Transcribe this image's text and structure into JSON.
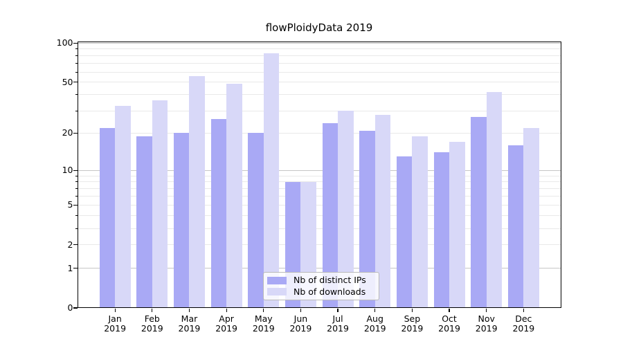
{
  "figure": {
    "background": "#ffffff"
  },
  "chart_data": {
    "type": "bar",
    "title": "flowPloidyData 2019",
    "categories": [
      "Jan\n2019",
      "Feb\n2019",
      "Mar\n2019",
      "Apr\n2019",
      "May\n2019",
      "Jun\n2019",
      "Jul\n2019",
      "Aug\n2019",
      "Sep\n2019",
      "Oct\n2019",
      "Nov\n2019",
      "Dec\n2019"
    ],
    "series": [
      {
        "name": "Nb of distinct IPs",
        "color": "#a9a9f5",
        "values": [
          22,
          19,
          20,
          26,
          20,
          8,
          24,
          21,
          13,
          14,
          27,
          16
        ]
      },
      {
        "name": "Nb of downloads",
        "color": "#d8d8f8",
        "values": [
          33,
          36,
          56,
          49,
          83,
          8,
          30,
          28,
          19,
          17,
          42,
          22
        ]
      }
    ],
    "xlabel": "",
    "ylabel": "",
    "yscale": "log1p",
    "ylim": [
      0,
      100
    ],
    "yticks": [
      100,
      50,
      20,
      10,
      5,
      2,
      1,
      0
    ],
    "y_minor_gridlines": [
      2,
      3,
      4,
      5,
      6,
      7,
      8,
      9,
      20,
      30,
      40,
      50,
      60,
      70,
      80,
      90
    ],
    "y_major_gridlines": [
      1,
      10,
      100
    ],
    "grid": "horizontal",
    "legend_position": "inside-bottom-center"
  },
  "colors": {
    "major_grid": "#c6c6c6",
    "minor_grid": "#e9e9e9",
    "axis": "#000000",
    "legend_border": "#b9b9b9"
  }
}
